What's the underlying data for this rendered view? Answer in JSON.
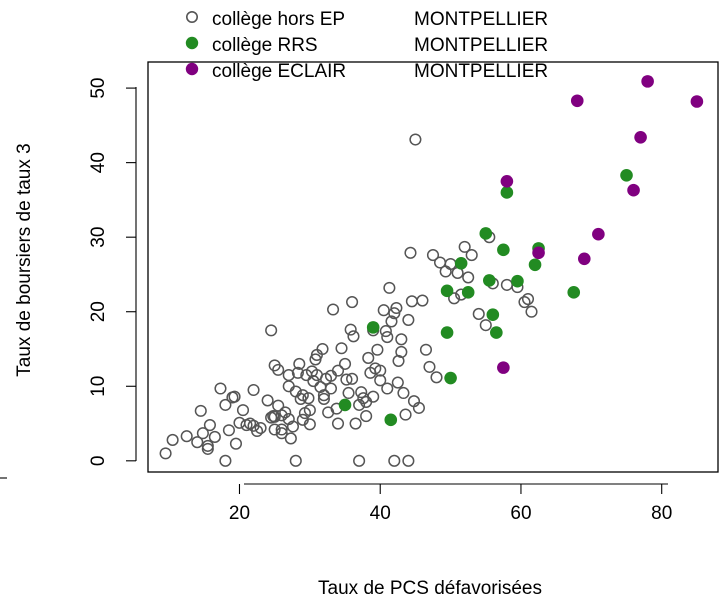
{
  "chart_data": {
    "type": "scatter",
    "title": "",
    "xlabel": "Taux de PCS défavorisées",
    "ylabel": "Taux de boursiers de taux 3",
    "xlim": [
      7,
      88
    ],
    "ylim": [
      -1.5,
      53.5
    ],
    "x_ticks": [
      20,
      40,
      60,
      80
    ],
    "y_ticks": [
      0,
      10,
      20,
      30,
      40,
      50
    ],
    "x_tick_labels": [
      "20",
      "40",
      "60",
      "80"
    ],
    "y_tick_labels": [
      "0",
      "10",
      "20",
      "30",
      "40",
      "50"
    ],
    "grid": false,
    "legend_position": "top",
    "legend": [
      {
        "label": "collège hors EP",
        "city": "MONTPELLIER",
        "marker": "open-circle",
        "color": "#555555"
      },
      {
        "label": "collège RRS",
        "city": "MONTPELLIER",
        "marker": "filled-circle",
        "color": "#228B22"
      },
      {
        "label": "collège ECLAIR",
        "city": "MONTPELLIER",
        "marker": "filled-circle",
        "color": "#800080"
      }
    ],
    "series": [
      {
        "name": "collège hors EP  MONTPELLIER",
        "marker": "open-circle",
        "color": "#555555",
        "points": [
          [
            9.5,
            1
          ],
          [
            10.5,
            2.8
          ],
          [
            12.5,
            3.3
          ],
          [
            14,
            2.5
          ],
          [
            14.5,
            6.7
          ],
          [
            14.8,
            3.7
          ],
          [
            15.5,
            1.6
          ],
          [
            15.8,
            4.8
          ],
          [
            15.5,
            2
          ],
          [
            16.5,
            3.2
          ],
          [
            17.3,
            9.7
          ],
          [
            18,
            7.5
          ],
          [
            18.5,
            4.1
          ],
          [
            19,
            8.5
          ],
          [
            19.3,
            8.6
          ],
          [
            19.5,
            2.3
          ],
          [
            20,
            5.1
          ],
          [
            20.5,
            6.8
          ],
          [
            21,
            4.8
          ],
          [
            21.5,
            5
          ],
          [
            22,
            4.7
          ],
          [
            22.5,
            4
          ],
          [
            23,
            4.4
          ],
          [
            24,
            8.1
          ],
          [
            24.5,
            5.8
          ],
          [
            24.8,
            6
          ],
          [
            25,
            5.9
          ],
          [
            25.5,
            7.4
          ],
          [
            26,
            4.2
          ],
          [
            25,
            12.8
          ],
          [
            24.5,
            17.5
          ],
          [
            25.5,
            12.2
          ],
          [
            26.5,
            6.5
          ],
          [
            27,
            10
          ],
          [
            27.3,
            3
          ],
          [
            27.6,
            4.6
          ],
          [
            28,
            9.3
          ],
          [
            28.3,
            11.8
          ],
          [
            28.5,
            13
          ],
          [
            28.7,
            8.3
          ],
          [
            29,
            8.8
          ],
          [
            29.3,
            6.4
          ],
          [
            29.5,
            11.5
          ],
          [
            29.8,
            8.4
          ],
          [
            30,
            4.9
          ],
          [
            30.3,
            12
          ],
          [
            30.5,
            10.7
          ],
          [
            30.8,
            13.6
          ],
          [
            31,
            14.2
          ],
          [
            31.5,
            9.9
          ],
          [
            31.8,
            15
          ],
          [
            32,
            8.3
          ],
          [
            32.3,
            11
          ],
          [
            32.6,
            6.5
          ],
          [
            33,
            11.4
          ],
          [
            33.3,
            20.3
          ],
          [
            33.8,
            7
          ],
          [
            34,
            5
          ],
          [
            34.5,
            15.1
          ],
          [
            35,
            13
          ],
          [
            35.2,
            10.9
          ],
          [
            35.5,
            9.1
          ],
          [
            35.8,
            17.6
          ],
          [
            36,
            21.3
          ],
          [
            36.2,
            16.7
          ],
          [
            36.5,
            5
          ],
          [
            37,
            7.5
          ],
          [
            37.3,
            9.2
          ],
          [
            37.6,
            8.4
          ],
          [
            38,
            7.9
          ],
          [
            38.3,
            13.8
          ],
          [
            38.6,
            11.8
          ],
          [
            39,
            17.5
          ],
          [
            39.3,
            12.4
          ],
          [
            39.6,
            14.9
          ],
          [
            40,
            12.1
          ],
          [
            40.5,
            20.2
          ],
          [
            40.8,
            17.4
          ],
          [
            41,
            16.6
          ],
          [
            41.3,
            23.2
          ],
          [
            41.6,
            18.7
          ],
          [
            42,
            19.8
          ],
          [
            42.3,
            20.5
          ],
          [
            42.6,
            13.4
          ],
          [
            43,
            14.6
          ],
          [
            43.3,
            9.1
          ],
          [
            43.6,
            6.2
          ],
          [
            44,
            18.9
          ],
          [
            44.3,
            27.9
          ],
          [
            44.5,
            21.4
          ],
          [
            44.8,
            8
          ],
          [
            45,
            43.1
          ],
          [
            45.5,
            7.1
          ],
          [
            46,
            21.5
          ],
          [
            46.5,
            14.9
          ],
          [
            47,
            12.6
          ],
          [
            47.5,
            27.6
          ],
          [
            48,
            11.2
          ],
          [
            48.5,
            26.6
          ],
          [
            49.3,
            25.4
          ],
          [
            50,
            26.4
          ],
          [
            50.5,
            21.8
          ],
          [
            51,
            25.2
          ],
          [
            51.5,
            22.3
          ],
          [
            52,
            28.7
          ],
          [
            52.5,
            24.6
          ],
          [
            53,
            27.6
          ],
          [
            54,
            19.7
          ],
          [
            55,
            18.2
          ],
          [
            55.5,
            30
          ],
          [
            56,
            23.8
          ],
          [
            58,
            23.6
          ],
          [
            59.5,
            23.3
          ],
          [
            60.5,
            21.3
          ],
          [
            61,
            21.7
          ],
          [
            61.5,
            20
          ],
          [
            28,
            0
          ],
          [
            37,
            0
          ],
          [
            42,
            0
          ],
          [
            44,
            0
          ],
          [
            18,
            0
          ],
          [
            22,
            9.5
          ],
          [
            26,
            3.7
          ],
          [
            27,
            11.5
          ],
          [
            31,
            11.5
          ],
          [
            33,
            9.7
          ],
          [
            34,
            12.1
          ],
          [
            36,
            11
          ],
          [
            38,
            6
          ],
          [
            39,
            8.6
          ],
          [
            40,
            10.8
          ],
          [
            41,
            9.7
          ],
          [
            42.5,
            10.5
          ],
          [
            43,
            16.3
          ],
          [
            32,
            8.8
          ],
          [
            30,
            6.8
          ],
          [
            29,
            5.5
          ],
          [
            27,
            5.6
          ],
          [
            26,
            6.1
          ],
          [
            25,
            4.2
          ]
        ]
      },
      {
        "name": "collège RRS  MONTPELLIER",
        "marker": "filled-circle",
        "color": "#228B22",
        "points": [
          [
            35,
            7.5
          ],
          [
            39,
            17.9
          ],
          [
            41.5,
            5.5
          ],
          [
            49.5,
            17.2
          ],
          [
            49.5,
            22.8
          ],
          [
            50,
            11.1
          ],
          [
            51.5,
            26.5
          ],
          [
            52.5,
            22.6
          ],
          [
            55,
            30.5
          ],
          [
            55.5,
            24.2
          ],
          [
            56,
            19.6
          ],
          [
            56.5,
            17.2
          ],
          [
            57.5,
            28.3
          ],
          [
            58,
            36
          ],
          [
            59.5,
            24.1
          ],
          [
            62,
            26.3
          ],
          [
            62.5,
            28.5
          ],
          [
            67.5,
            22.6
          ],
          [
            75,
            38.3
          ]
        ]
      },
      {
        "name": "collège ECLAIR  MONTPELLIER",
        "marker": "filled-circle",
        "color": "#800080",
        "points": [
          [
            57.5,
            12.5
          ],
          [
            58,
            37.5
          ],
          [
            62.5,
            27.9
          ],
          [
            68,
            48.3
          ],
          [
            69,
            27.1
          ],
          [
            71,
            30.4
          ],
          [
            76,
            36.3
          ],
          [
            77,
            43.4
          ],
          [
            78,
            50.9
          ],
          [
            85,
            48.2
          ]
        ]
      }
    ]
  }
}
